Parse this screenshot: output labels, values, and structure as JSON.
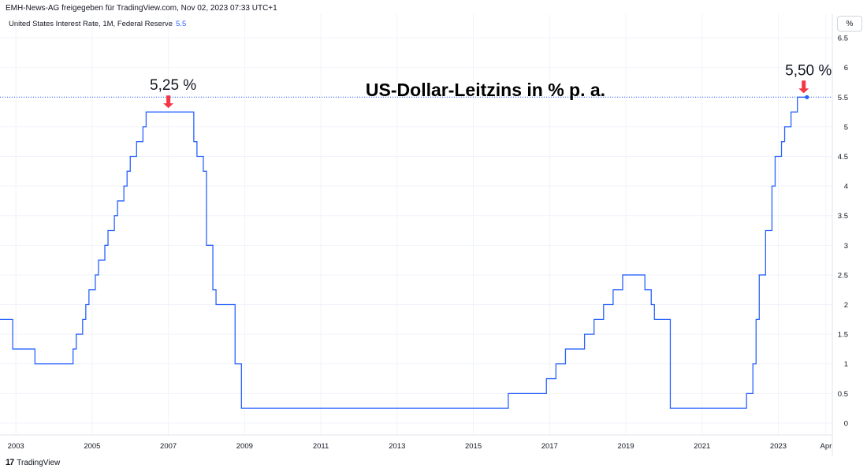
{
  "header": {
    "publisher_line": "EMH-News-AG freigegeben für TradingView.com, Nov 02, 2023 07:33 UTC+1",
    "legend_label": "United States Interest Rate, 1M, Federal Reserve",
    "legend_value": "5.5",
    "unit_button": "%"
  },
  "footer": {
    "logo_mark": "17",
    "brand": "TradingView"
  },
  "chart_data": {
    "type": "line",
    "title": "US-Dollar-Leitzins in % p. a.",
    "x_ticks": [
      "2003",
      "2005",
      "2007",
      "2009",
      "2011",
      "2013",
      "2015",
      "2017",
      "2019",
      "2021",
      "2023",
      "Apr"
    ],
    "y_ticks": [
      "0",
      "0.5",
      "1",
      "1.5",
      "2",
      "2.5",
      "3",
      "3.5",
      "4",
      "4.5",
      "5",
      "5.5",
      "6",
      "6.5",
      "%"
    ],
    "xlim": [
      "2002-08",
      "2024-06"
    ],
    "ylim": [
      -0.2,
      6.9
    ],
    "grid": true,
    "line_color": "#2962ff",
    "annotations": [
      {
        "text": "5,25 %",
        "date": "2007-01",
        "value": 5.25
      },
      {
        "text": "5,50 %",
        "date": "2023-09",
        "value": 5.5
      }
    ],
    "last_value_line": 5.5,
    "series": [
      {
        "points": [
          [
            "2002-08",
            1.75
          ],
          [
            "2002-11",
            1.75
          ],
          [
            "2002-12",
            1.25
          ],
          [
            "2003-06",
            1.25
          ],
          [
            "2003-07",
            1.0
          ],
          [
            "2004-06",
            1.0
          ],
          [
            "2004-07",
            1.25
          ],
          [
            "2004-08",
            1.5
          ],
          [
            "2004-10",
            1.75
          ],
          [
            "2004-11",
            2.0
          ],
          [
            "2004-12",
            2.25
          ],
          [
            "2005-02",
            2.5
          ],
          [
            "2005-03",
            2.75
          ],
          [
            "2005-05",
            3.0
          ],
          [
            "2005-06",
            3.25
          ],
          [
            "2005-08",
            3.5
          ],
          [
            "2005-09",
            3.75
          ],
          [
            "2005-11",
            4.0
          ],
          [
            "2005-12",
            4.25
          ],
          [
            "2006-01",
            4.5
          ],
          [
            "2006-03",
            4.75
          ],
          [
            "2006-05",
            5.0
          ],
          [
            "2006-06",
            5.25
          ],
          [
            "2007-08",
            5.25
          ],
          [
            "2007-09",
            4.75
          ],
          [
            "2007-10",
            4.5
          ],
          [
            "2007-12",
            4.25
          ],
          [
            "2008-01",
            3.0
          ],
          [
            "2008-03",
            2.25
          ],
          [
            "2008-04",
            2.0
          ],
          [
            "2008-09",
            2.0
          ],
          [
            "2008-10",
            1.0
          ],
          [
            "2008-12",
            0.25
          ],
          [
            "2015-11",
            0.25
          ],
          [
            "2015-12",
            0.5
          ],
          [
            "2016-11",
            0.5
          ],
          [
            "2016-12",
            0.75
          ],
          [
            "2017-02",
            0.75
          ],
          [
            "2017-03",
            1.0
          ],
          [
            "2017-05",
            1.0
          ],
          [
            "2017-06",
            1.25
          ],
          [
            "2017-11",
            1.25
          ],
          [
            "2017-12",
            1.5
          ],
          [
            "2018-02",
            1.5
          ],
          [
            "2018-03",
            1.75
          ],
          [
            "2018-05",
            1.75
          ],
          [
            "2018-06",
            2.0
          ],
          [
            "2018-08",
            2.0
          ],
          [
            "2018-09",
            2.25
          ],
          [
            "2018-11",
            2.25
          ],
          [
            "2018-12",
            2.5
          ],
          [
            "2019-06",
            2.5
          ],
          [
            "2019-07",
            2.25
          ],
          [
            "2019-08",
            2.25
          ],
          [
            "2019-09",
            2.0
          ],
          [
            "2019-10",
            1.75
          ],
          [
            "2020-02",
            1.75
          ],
          [
            "2020-03",
            0.25
          ],
          [
            "2022-02",
            0.25
          ],
          [
            "2022-03",
            0.5
          ],
          [
            "2022-04",
            0.5
          ],
          [
            "2022-05",
            1.0
          ],
          [
            "2022-06",
            1.75
          ],
          [
            "2022-07",
            2.5
          ],
          [
            "2022-08",
            2.5
          ],
          [
            "2022-09",
            3.25
          ],
          [
            "2022-10",
            3.25
          ],
          [
            "2022-11",
            4.0
          ],
          [
            "2022-12",
            4.5
          ],
          [
            "2023-01",
            4.5
          ],
          [
            "2023-02",
            4.75
          ],
          [
            "2023-03",
            5.0
          ],
          [
            "2023-04",
            5.0
          ],
          [
            "2023-05",
            5.25
          ],
          [
            "2023-06",
            5.25
          ],
          [
            "2023-07",
            5.5
          ],
          [
            "2023-10",
            5.5
          ]
        ]
      }
    ]
  }
}
